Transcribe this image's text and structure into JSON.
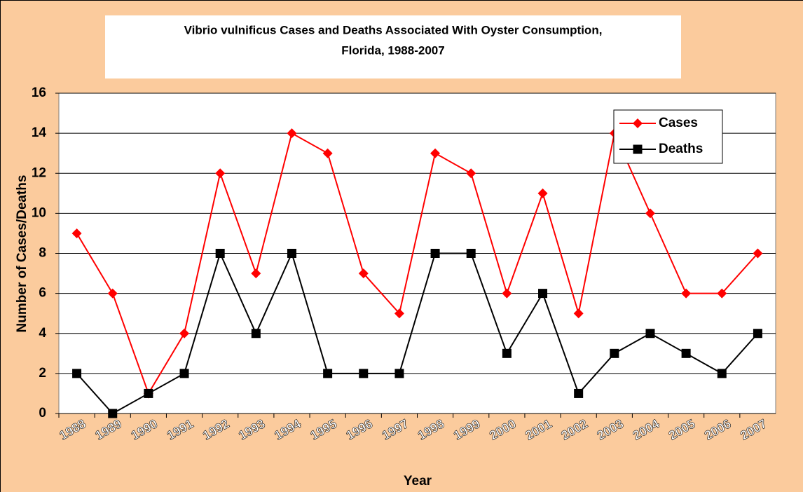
{
  "chart_data": {
    "type": "line",
    "title": [
      "Vibrio vulnificus Cases and Deaths Associated With Oyster Consumption,",
      "Florida, 1988-2007"
    ],
    "x_label": "Year",
    "y_label": "Number of Cases/Deaths",
    "categories": [
      "1988",
      "1989",
      "1990",
      "1991",
      "1992",
      "1993",
      "1994",
      "1995",
      "1996",
      "1997",
      "1998",
      "1999",
      "2000",
      "2001",
      "2002",
      "2003",
      "2004",
      "2005",
      "2006",
      "2007"
    ],
    "series": [
      {
        "name": "Cases",
        "color": "#ff0000",
        "marker": "diamond",
        "values": [
          9,
          6,
          1,
          4,
          12,
          7,
          14,
          13,
          7,
          5,
          13,
          12,
          6,
          11,
          5,
          14,
          10,
          6,
          6,
          8
        ]
      },
      {
        "name": "Deaths",
        "color": "#000000",
        "marker": "square",
        "values": [
          2,
          0,
          1,
          2,
          8,
          4,
          8,
          2,
          2,
          2,
          8,
          8,
          3,
          6,
          1,
          3,
          4,
          3,
          2,
          4
        ]
      }
    ],
    "ylim": [
      0,
      16
    ],
    "yticks": [
      0,
      2,
      4,
      6,
      8,
      10,
      12,
      14,
      16
    ],
    "grid": true,
    "legend": "upper right"
  }
}
